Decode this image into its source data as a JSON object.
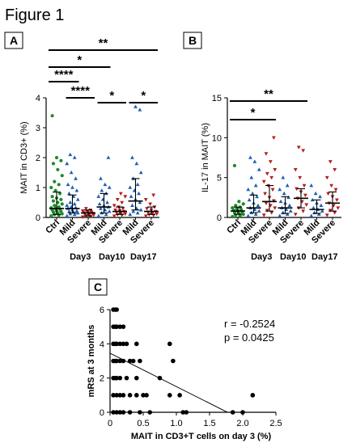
{
  "figure_title": "Figure 1",
  "colors": {
    "green": "#1f8a2a",
    "blue": "#1e5fb0",
    "red": "#b01e1e",
    "black": "#000000"
  },
  "chart_data": [
    {
      "panel": "A",
      "type": "scatter",
      "ylabel": "MAIT in CD3+ (%)",
      "ylim": [
        0,
        4
      ],
      "yticks": [
        "0",
        "1",
        "2",
        "3",
        "4"
      ],
      "categories": [
        "Ctrl",
        "Mild",
        "Severe",
        "Mild",
        "Severe",
        "Mild",
        "Severe"
      ],
      "category_colors": [
        "green",
        "blue",
        "red",
        "blue",
        "red",
        "blue",
        "red"
      ],
      "groups": [
        "Day3",
        "Day10",
        "Day17"
      ],
      "medians": [
        0.3,
        0.3,
        0.15,
        0.35,
        0.2,
        0.55,
        0.2
      ],
      "iqr": [
        [
          0.1,
          0.85
        ],
        [
          0.15,
          0.75
        ],
        [
          0.05,
          0.25
        ],
        [
          0.15,
          0.8
        ],
        [
          0.1,
          0.35
        ],
        [
          0.25,
          1.3
        ],
        [
          0.1,
          0.35
        ]
      ],
      "points": [
        [
          0.05,
          0.08,
          0.1,
          0.12,
          0.15,
          0.18,
          0.2,
          0.22,
          0.25,
          0.28,
          0.3,
          0.32,
          0.35,
          0.4,
          0.45,
          0.5,
          0.55,
          0.6,
          0.65,
          0.7,
          0.8,
          0.9,
          1.0,
          1.1,
          1.2,
          1.4,
          1.6,
          1.8,
          1.9,
          2.0,
          3.4
        ],
        [
          0.05,
          0.1,
          0.12,
          0.15,
          0.18,
          0.2,
          0.22,
          0.25,
          0.3,
          0.33,
          0.35,
          0.4,
          0.45,
          0.5,
          0.6,
          0.7,
          0.8,
          0.9,
          1.0,
          1.1,
          1.3,
          1.5,
          1.8,
          2.0,
          2.1
        ],
        [
          0.02,
          0.04,
          0.06,
          0.08,
          0.1,
          0.12,
          0.14,
          0.15,
          0.16,
          0.18,
          0.2,
          0.22,
          0.25,
          0.3
        ],
        [
          0.05,
          0.1,
          0.15,
          0.2,
          0.25,
          0.3,
          0.35,
          0.4,
          0.45,
          0.5,
          0.6,
          0.7,
          0.8,
          0.9,
          1.0,
          1.1,
          1.3,
          2.0
        ],
        [
          0.05,
          0.08,
          0.1,
          0.12,
          0.15,
          0.18,
          0.2,
          0.22,
          0.25,
          0.3,
          0.35,
          0.4,
          0.5,
          0.6,
          0.7,
          0.8
        ],
        [
          0.1,
          0.15,
          0.2,
          0.25,
          0.3,
          0.4,
          0.5,
          0.6,
          0.7,
          0.8,
          0.9,
          1.0,
          1.1,
          1.3,
          1.5,
          1.8,
          2.0,
          3.6,
          3.7
        ],
        [
          0.05,
          0.08,
          0.1,
          0.12,
          0.15,
          0.18,
          0.2,
          0.25,
          0.3,
          0.35,
          0.45,
          0.6,
          0.75
        ]
      ],
      "significance": [
        {
          "from": 0,
          "to": 6,
          "label": "**"
        },
        {
          "from": 0,
          "to": 3,
          "label": "*"
        },
        {
          "from": 0,
          "to": 1,
          "label": "****"
        },
        {
          "from": 1,
          "to": 2,
          "label": "****"
        },
        {
          "from": 3,
          "to": 4,
          "label": "*"
        },
        {
          "from": 5,
          "to": 6,
          "label": "*"
        }
      ]
    },
    {
      "panel": "B",
      "type": "scatter",
      "ylabel": "IL-17 in MAIT (%)",
      "ylim": [
        0,
        15
      ],
      "yticks": [
        "0",
        "5",
        "10",
        "15"
      ],
      "categories": [
        "Ctrl",
        "Mild",
        "Severe",
        "Mild",
        "Severe",
        "Mild",
        "Severe"
      ],
      "category_colors": [
        "green",
        "blue",
        "red",
        "blue",
        "red",
        "blue",
        "red"
      ],
      "groups": [
        "Day3",
        "Day10",
        "Day17"
      ],
      "medians": [
        0.8,
        1.2,
        2.0,
        1.2,
        2.4,
        1.0,
        1.8
      ],
      "iqr": [
        [
          0.4,
          1.3
        ],
        [
          0.6,
          2.8
        ],
        [
          0.8,
          4.0
        ],
        [
          0.5,
          2.6
        ],
        [
          1.2,
          3.6
        ],
        [
          0.5,
          2.2
        ],
        [
          0.8,
          3.2
        ]
      ],
      "points": [
        [
          0.1,
          0.2,
          0.3,
          0.4,
          0.5,
          0.6,
          0.7,
          0.8,
          0.9,
          1.0,
          1.1,
          1.2,
          1.3,
          1.5,
          1.7,
          2.0,
          6.5
        ],
        [
          0.2,
          0.4,
          0.6,
          0.8,
          1.0,
          1.2,
          1.5,
          1.8,
          2.2,
          2.6,
          3.0,
          3.5,
          4.0,
          5.0,
          6.0,
          7.0,
          7.5
        ],
        [
          0.3,
          0.6,
          0.9,
          1.2,
          1.5,
          1.8,
          2.1,
          2.5,
          3.0,
          3.5,
          4.0,
          4.5,
          5.0,
          5.5,
          6.0,
          7.0,
          8.0,
          10.0
        ],
        [
          0.2,
          0.4,
          0.6,
          0.8,
          1.0,
          1.2,
          1.5,
          1.8,
          2.0,
          2.5,
          3.0,
          3.5,
          4.0,
          5.0
        ],
        [
          0.4,
          0.8,
          1.2,
          1.6,
          2.0,
          2.4,
          2.8,
          3.2,
          3.6,
          4.0,
          5.0,
          6.0,
          8.4,
          8.8
        ],
        [
          0.2,
          0.4,
          0.6,
          0.8,
          1.0,
          1.2,
          1.5,
          1.8,
          2.2,
          2.6,
          3.0,
          4.0
        ],
        [
          0.3,
          0.6,
          0.9,
          1.2,
          1.5,
          1.8,
          2.2,
          2.6,
          3.0,
          3.5,
          4.0,
          5.0,
          6.0,
          7.0
        ]
      ],
      "significance": [
        {
          "from": 0,
          "to": 4,
          "label": "**"
        },
        {
          "from": 0,
          "to": 2,
          "label": "*"
        }
      ]
    },
    {
      "panel": "C",
      "type": "scatter",
      "xlabel": "MAIT in CD3+T cells on day 3 (%)",
      "ylabel": "mRS at 3 months",
      "xlim": [
        0,
        2.5
      ],
      "ylim": [
        0,
        6
      ],
      "xticks": [
        "0",
        "0.5",
        "1.0",
        "1.5",
        "2.0",
        "2.5"
      ],
      "yticks": [
        "0",
        "2",
        "4",
        "6"
      ],
      "stats": [
        "r = -0.2524",
        "p = 0.0425"
      ],
      "regression": {
        "slope": -1.95,
        "intercept": 3.45
      },
      "points": [
        [
          0.05,
          6
        ],
        [
          0.08,
          6
        ],
        [
          0.1,
          6
        ],
        [
          0.05,
          5
        ],
        [
          0.08,
          5
        ],
        [
          0.1,
          5
        ],
        [
          0.15,
          5
        ],
        [
          0.2,
          5
        ],
        [
          0.05,
          4
        ],
        [
          0.08,
          4
        ],
        [
          0.1,
          4
        ],
        [
          0.15,
          4
        ],
        [
          0.2,
          4
        ],
        [
          0.25,
          4
        ],
        [
          0.4,
          4
        ],
        [
          0.9,
          4
        ],
        [
          0.05,
          3
        ],
        [
          0.08,
          3
        ],
        [
          0.1,
          3
        ],
        [
          0.15,
          3
        ],
        [
          0.2,
          3
        ],
        [
          0.3,
          3
        ],
        [
          0.35,
          3
        ],
        [
          0.45,
          3
        ],
        [
          0.95,
          3
        ],
        [
          0.05,
          2
        ],
        [
          0.08,
          2
        ],
        [
          0.1,
          2
        ],
        [
          0.15,
          2
        ],
        [
          0.25,
          2
        ],
        [
          0.4,
          2
        ],
        [
          0.75,
          2
        ],
        [
          0.05,
          1
        ],
        [
          0.1,
          1
        ],
        [
          0.15,
          1
        ],
        [
          0.2,
          1
        ],
        [
          0.3,
          1
        ],
        [
          0.4,
          1
        ],
        [
          0.5,
          1
        ],
        [
          0.55,
          1
        ],
        [
          0.9,
          1
        ],
        [
          1.05,
          1
        ],
        [
          2.15,
          1
        ],
        [
          0.05,
          0
        ],
        [
          0.1,
          0
        ],
        [
          0.15,
          0
        ],
        [
          0.2,
          0
        ],
        [
          0.3,
          0
        ],
        [
          0.45,
          0
        ],
        [
          0.6,
          0
        ],
        [
          1.1,
          0
        ],
        [
          1.15,
          0
        ],
        [
          1.85,
          0
        ],
        [
          2.0,
          0
        ]
      ]
    }
  ]
}
